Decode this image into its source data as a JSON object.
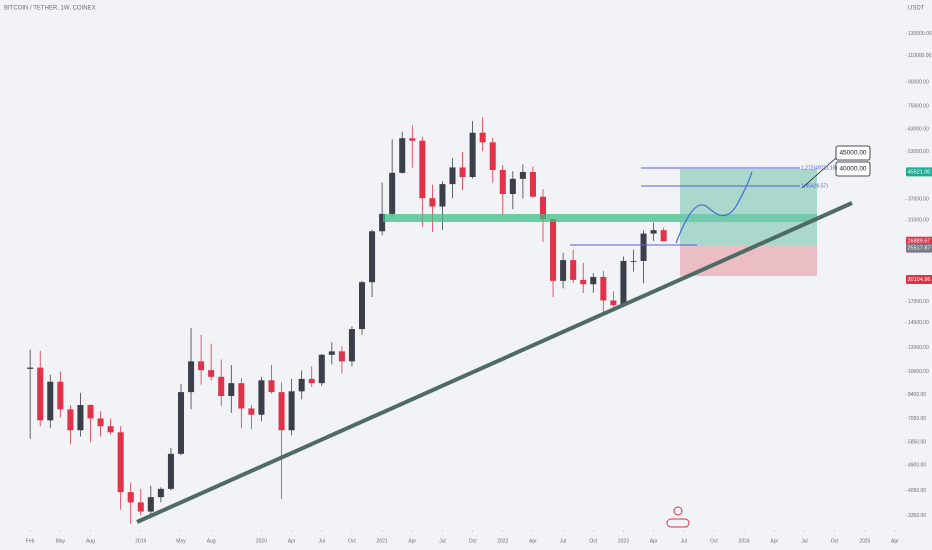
{
  "chart_data": {
    "type": "candlestick",
    "title": "BITCOIN / TETHER, 1W, COINEX",
    "y_unit": "USDT",
    "log_scale": true,
    "up_color": "#3b3f4a",
    "down_color": "#e0334a",
    "x": [
      "2018-02",
      "2018-03",
      "2018-04",
      "2018-05",
      "2018-06",
      "2018-07",
      "2018-08",
      "2018-09",
      "2018-10",
      "2018-11",
      "2018-12",
      "2019-01",
      "2019-02",
      "2019-03",
      "2019-04",
      "2019-05",
      "2019-06",
      "2019-07",
      "2019-08",
      "2019-09",
      "2019-10",
      "2019-11",
      "2019-12",
      "2020-01",
      "2020-02",
      "2020-03",
      "2020-04",
      "2020-05",
      "2020-06",
      "2020-07",
      "2020-08",
      "2020-09",
      "2020-10",
      "2020-11",
      "2020-12",
      "2021-01",
      "2021-02",
      "2021-03",
      "2021-04",
      "2021-05",
      "2021-06",
      "2021-07",
      "2021-08",
      "2021-09",
      "2021-10",
      "2021-11",
      "2021-12",
      "2022-01",
      "2022-02",
      "2022-03",
      "2022-04",
      "2022-05",
      "2022-06",
      "2022-07",
      "2022-08",
      "2022-09",
      "2022-10",
      "2022-11",
      "2022-12",
      "2023-01",
      "2023-02",
      "2023-03",
      "2023-04",
      "2023-05"
    ],
    "open": [
      10200,
      10300,
      6900,
      9250,
      7500,
      6400,
      7750,
      7000,
      6600,
      6300,
      4000,
      3700,
      3450,
      3850,
      4100,
      5350,
      8550,
      10800,
      10100,
      9600,
      8300,
      9150,
      7550,
      7200,
      9350,
      8550,
      6400,
      8600,
      9450,
      9150,
      11350,
      11650,
      10800,
      13800,
      19700,
      29000,
      33100,
      45200,
      58800,
      57700,
      37300,
      35000,
      41500,
      47100,
      43800,
      61300,
      57000,
      46200,
      38500,
      43200,
      45500,
      37700,
      31800,
      19900,
      23300,
      20050,
      19400,
      20500,
      17150,
      16550,
      23150,
      23150,
      28500,
      29250
    ],
    "high": [
      11800,
      11700,
      9750,
      10000,
      7750,
      8500,
      7800,
      7400,
      7000,
      6600,
      4300,
      4100,
      4200,
      4150,
      5600,
      9100,
      13900,
      13200,
      12350,
      10950,
      10500,
      9500,
      7750,
      9600,
      10500,
      9200,
      9450,
      10080,
      10400,
      11450,
      12480,
      12100,
      14100,
      19900,
      29300,
      42000,
      58350,
      61800,
      64850,
      59500,
      41300,
      42400,
      50500,
      52900,
      67000,
      69000,
      59000,
      48000,
      45800,
      48200,
      47400,
      40000,
      31900,
      24650,
      25200,
      22800,
      21100,
      21450,
      18400,
      23950,
      25250,
      29200,
      31000,
      29800
    ],
    "low": [
      6000,
      6600,
      6500,
      7050,
      5750,
      6100,
      5850,
      6100,
      6200,
      3500,
      3150,
      3350,
      3380,
      3700,
      4050,
      5300,
      7500,
      9050,
      9350,
      7700,
      7300,
      6500,
      6450,
      6850,
      8450,
      3800,
      6150,
      8100,
      8900,
      8950,
      10550,
      9850,
      10400,
      13200,
      17600,
      28100,
      32300,
      44950,
      47000,
      30000,
      28800,
      29300,
      37300,
      39600,
      43300,
      53300,
      42000,
      32900,
      34300,
      37200,
      37600,
      26700,
      17600,
      18800,
      19550,
      18150,
      18200,
      15500,
      16250,
      16500,
      21350,
      19550,
      26950,
      26850
    ],
    "close": [
      10300,
      6900,
      9250,
      7500,
      6400,
      7750,
      7000,
      6600,
      6300,
      4000,
      3700,
      3450,
      3850,
      4100,
      5350,
      8550,
      10800,
      10100,
      9600,
      8300,
      9150,
      7550,
      7200,
      9350,
      8550,
      6400,
      8600,
      9450,
      9150,
      11350,
      11650,
      10800,
      13800,
      19700,
      29000,
      33100,
      45200,
      58800,
      57700,
      37300,
      35000,
      41500,
      47100,
      43800,
      61300,
      57000,
      46200,
      38500,
      43200,
      45500,
      37700,
      31800,
      19900,
      23300,
      20050,
      19400,
      20500,
      17150,
      16550,
      23150,
      23150,
      28500,
      29250,
      26890
    ],
    "xlim": [
      "2017-11",
      "2025-05"
    ],
    "xticks": [
      {
        "value": "2018-02",
        "label": "Feb"
      },
      {
        "value": "2018-05",
        "label": "May"
      },
      {
        "value": "2018-08",
        "label": "Aug"
      },
      {
        "value": "2019-01",
        "label": "2019"
      },
      {
        "value": "2019-05",
        "label": "May"
      },
      {
        "value": "2019-08",
        "label": "Aug"
      },
      {
        "value": "2020-01",
        "label": "2020"
      },
      {
        "value": "2020-04",
        "label": "Apr"
      },
      {
        "value": "2020-07",
        "label": "Jul"
      },
      {
        "value": "2020-10",
        "label": "Oct"
      },
      {
        "value": "2021-01",
        "label": "2021"
      },
      {
        "value": "2021-04",
        "label": "Apr"
      },
      {
        "value": "2021-07",
        "label": "Jul"
      },
      {
        "value": "2021-10",
        "label": "Oct"
      },
      {
        "value": "2022-01",
        "label": "2022"
      },
      {
        "value": "2022-04",
        "label": "Apr"
      },
      {
        "value": "2022-07",
        "label": "Jul"
      },
      {
        "value": "2022-10",
        "label": "Oct"
      },
      {
        "value": "2023-01",
        "label": "2023"
      },
      {
        "value": "2023-04",
        "label": "Apr"
      },
      {
        "value": "2023-07",
        "label": "Jul"
      },
      {
        "value": "2023-10",
        "label": "Oct"
      },
      {
        "value": "2024-01",
        "label": "2024"
      },
      {
        "value": "2024-04",
        "label": "Apr"
      },
      {
        "value": "2024-07",
        "label": "Jul"
      },
      {
        "value": "2024-10",
        "label": "Oct"
      },
      {
        "value": "2025-01",
        "label": "2025"
      },
      {
        "value": "2025-04",
        "label": "Apr"
      }
    ],
    "ylim": [
      3000,
      168000
    ],
    "yticks": [
      {
        "value": 130000,
        "label": "130000.00"
      },
      {
        "value": 110000,
        "label": "110000.00"
      },
      {
        "value": 90000,
        "label": "90000.00"
      },
      {
        "value": 75000,
        "label": "75000.00"
      },
      {
        "value": 63000,
        "label": "63000.00"
      },
      {
        "value": 53000,
        "label": "53000.00"
      },
      {
        "value": 37000,
        "label": "37000.00"
      },
      {
        "value": 31500,
        "label": "31500.00"
      },
      {
        "value": 17000,
        "label": "17000.00"
      },
      {
        "value": 14500,
        "label": "14500.00"
      },
      {
        "value": 12000,
        "label": "12000.00"
      },
      {
        "value": 10000,
        "label": "10000.00"
      },
      {
        "value": 8400,
        "label": "8400.00"
      },
      {
        "value": 7000,
        "label": "7000.00"
      },
      {
        "value": 5850,
        "label": "5850.00"
      },
      {
        "value": 4900,
        "label": "4900.00"
      },
      {
        "value": 4050,
        "label": "4050.00"
      },
      {
        "value": 3350,
        "label": "3350.00"
      }
    ],
    "price_marks": {
      "values": [
        45521,
        26889.67,
        25517.87,
        20104.96
      ],
      "value_labels": [
        "45521.00",
        "26889.67",
        "25517.87",
        "20104.96"
      ],
      "colors": [
        "#22ab94",
        "#e0334a",
        "#787b86",
        "#e0334a"
      ]
    },
    "annotations": [
      "1.272(49711.18)",
      "1(45426.57)",
      "45000.00",
      "40000.00"
    ]
  }
}
